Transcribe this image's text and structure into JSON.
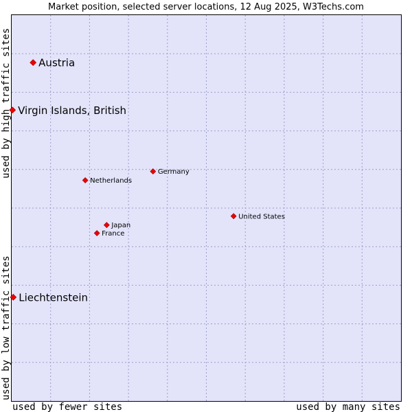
{
  "chart_data": {
    "type": "scatter",
    "title": "Market position, selected server locations, 12 Aug 2025, W3Techs.com",
    "xlabel_left": "used by fewer sites",
    "xlabel_right": "used by many sites",
    "ylabel_bottom": "used by low traffic sites",
    "ylabel_top": "used by high traffic sites",
    "xlim": [
      0,
      100
    ],
    "ylim": [
      0,
      100
    ],
    "grid": true,
    "background": "#e3e4fa",
    "marker_color": "#ee0000",
    "points": [
      {
        "name": "Austria",
        "x": 5.5,
        "y": 87.7,
        "size": "large"
      },
      {
        "name": "Virgin Islands, British",
        "x": 0.2,
        "y": 75.4,
        "size": "large"
      },
      {
        "name": "Germany",
        "x": 36.3,
        "y": 59.5,
        "size": "small"
      },
      {
        "name": "Netherlands",
        "x": 18.9,
        "y": 57.2,
        "size": "small"
      },
      {
        "name": "United States",
        "x": 57.0,
        "y": 47.9,
        "size": "small"
      },
      {
        "name": "Japan",
        "x": 24.4,
        "y": 45.6,
        "size": "small"
      },
      {
        "name": "France",
        "x": 21.9,
        "y": 43.5,
        "size": "small"
      },
      {
        "name": "Liechtenstein",
        "x": 0.4,
        "y": 26.9,
        "size": "large"
      }
    ]
  }
}
